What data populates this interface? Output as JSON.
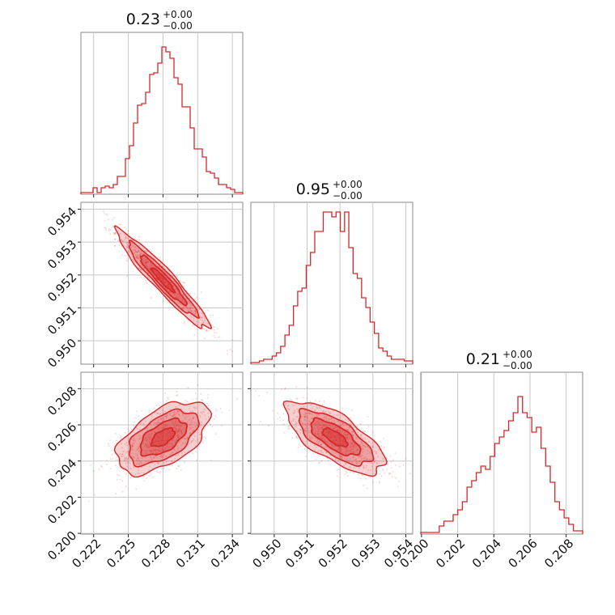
{
  "chart_data": {
    "type": "scatter",
    "kind": "corner-plot",
    "color": "#d62728",
    "params": [
      {
        "title_value": "0.23",
        "title_plus": "+0.00",
        "title_minus": "−0.00",
        "range": [
          0.2209,
          0.2349
        ],
        "ticks": [
          0.222,
          0.225,
          0.228,
          0.231,
          0.234
        ],
        "tick_labels": [
          "0.222",
          "0.225",
          "0.228",
          "0.231",
          "0.234"
        ],
        "hist": [
          0.01,
          0.01,
          0.01,
          0.04,
          0.01,
          0.04,
          0.05,
          0.04,
          0.06,
          0.11,
          0.11,
          0.22,
          0.3,
          0.44,
          0.55,
          0.56,
          0.63,
          0.74,
          0.75,
          0.81,
          0.91,
          0.88,
          0.84,
          0.72,
          0.68,
          0.54,
          0.54,
          0.41,
          0.28,
          0.28,
          0.23,
          0.14,
          0.13,
          0.1,
          0.06,
          0.06,
          0.04,
          0.03,
          0.01,
          0.01
        ]
      },
      {
        "title_value": "0.95",
        "title_plus": "+0.00",
        "title_minus": "−0.00",
        "range": [
          0.94929,
          0.95421
        ],
        "ticks": [
          0.95,
          0.951,
          0.952,
          0.953,
          0.954
        ],
        "tick_labels": [
          "0.950",
          "0.951",
          "0.952",
          "0.953",
          "0.954"
        ],
        "hist": [
          0.01,
          0.01,
          0.02,
          0.03,
          0.03,
          0.05,
          0.07,
          0.11,
          0.18,
          0.24,
          0.36,
          0.45,
          0.47,
          0.61,
          0.69,
          0.82,
          0.82,
          0.94,
          0.94,
          0.91,
          0.94,
          0.82,
          0.94,
          0.72,
          0.56,
          0.53,
          0.41,
          0.35,
          0.26,
          0.19,
          0.1,
          0.08,
          0.05,
          0.03,
          0.03,
          0.03,
          0.02,
          0.02
        ]
      },
      {
        "title_value": "0.21",
        "title_plus": "+0.00",
        "title_minus": "−0.00",
        "range": [
          0.19996,
          0.20891
        ],
        "ticks": [
          0.2,
          0.202,
          0.204,
          0.206,
          0.208
        ],
        "tick_labels": [
          "0.200",
          "0.202",
          "0.204",
          "0.206",
          "0.208"
        ],
        "hist": [
          0.01,
          0.01,
          0.01,
          0.01,
          0.05,
          0.08,
          0.08,
          0.12,
          0.15,
          0.2,
          0.29,
          0.33,
          0.38,
          0.42,
          0.4,
          0.48,
          0.56,
          0.6,
          0.64,
          0.7,
          0.75,
          0.85,
          0.75,
          0.72,
          0.63,
          0.66,
          0.53,
          0.42,
          0.32,
          0.2,
          0.15,
          0.1,
          0.06,
          0.02,
          0.02
        ]
      }
    ],
    "pairs": [
      {
        "x": 0,
        "y": 1,
        "center": [
          0.228,
          0.95185
        ],
        "sd": [
          0.002,
          0.00075
        ],
        "rho": -0.95
      },
      {
        "x": 0,
        "y": 2,
        "center": [
          0.228,
          0.2053
        ],
        "sd": [
          0.002,
          0.001
        ],
        "rho": 0.55
      },
      {
        "x": 1,
        "y": 2,
        "center": [
          0.95185,
          0.2053
        ],
        "sd": [
          0.00075,
          0.001
        ],
        "rho": -0.7
      }
    ],
    "grid": true
  }
}
